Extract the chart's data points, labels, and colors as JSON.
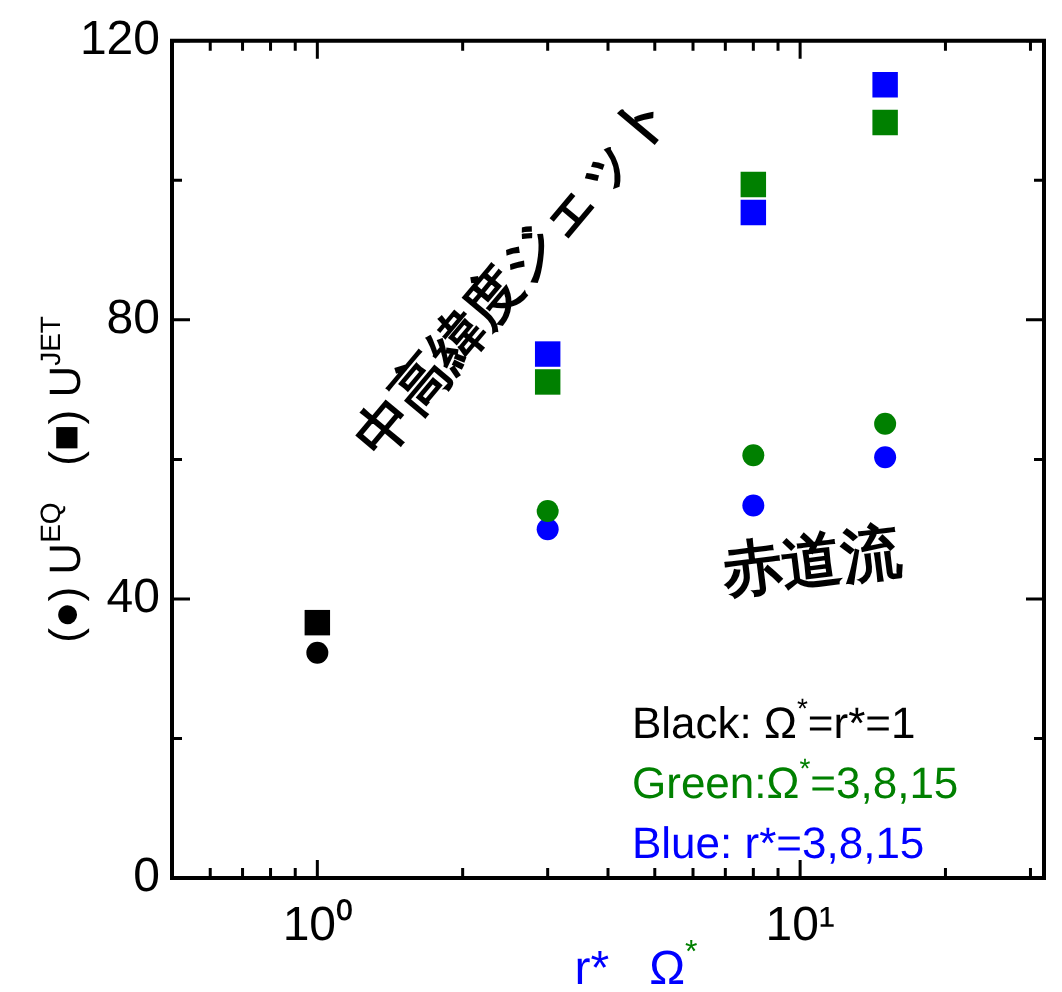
{
  "chart_data": {
    "type": "scatter",
    "ylabel": "(●) U$^{EQ}$   (■) U$^{JET}$",
    "xlabel": "r*   Ω$^{*}$",
    "log": "x",
    "xlim": [
      0.5,
      32
    ],
    "xticks": [
      {
        "value": 0.6,
        "label": null
      },
      {
        "value": 0.7,
        "label": null
      },
      {
        "value": 0.8,
        "label": null
      },
      {
        "value": 0.9,
        "label": null
      },
      {
        "value": 1,
        "label": "10⁰"
      },
      {
        "value": 2,
        "label": null
      },
      {
        "value": 3,
        "label": null
      },
      {
        "value": 4,
        "label": null
      },
      {
        "value": 5,
        "label": null
      },
      {
        "value": 6,
        "label": null
      },
      {
        "value": 7,
        "label": null
      },
      {
        "value": 8,
        "label": null
      },
      {
        "value": 9,
        "label": null
      },
      {
        "value": 10,
        "label": "10¹"
      },
      {
        "value": 20,
        "label": null
      },
      {
        "value": 30,
        "label": null
      }
    ],
    "ylim": [
      0,
      120
    ],
    "yticks": [
      0,
      {
        "value": 20,
        "label": null
      },
      40,
      {
        "value": 60,
        "label": null
      },
      80,
      {
        "value": 100,
        "label": null
      },
      120
    ],
    "grid": false,
    "legend": false,
    "series": [
      {
        "color": "#000000",
        "marker": "square",
        "x": [
          1
        ],
        "values": [
          36.6
        ]
      },
      {
        "color": "#000000",
        "marker": "circle",
        "x": [
          1
        ],
        "values": [
          32.3
        ]
      },
      {
        "color": "#008000",
        "marker": "square",
        "x": [
          3,
          8,
          15
        ],
        "values": [
          71.1,
          99.4,
          108.3
        ]
      },
      {
        "color": "#008000",
        "marker": "circle",
        "x": [
          3,
          8,
          15
        ],
        "values": [
          52.6,
          60.6,
          65.1
        ]
      },
      {
        "color": "#0000ff",
        "marker": "square",
        "x": [
          3,
          8,
          15
        ],
        "values": [
          75.1,
          95.4,
          113.7
        ]
      },
      {
        "color": "#0000ff",
        "marker": "circle",
        "x": [
          3,
          8,
          15
        ],
        "values": [
          50,
          53.4,
          60.3
        ]
      }
    ],
    "annotations": [
      "中高緯度ジェット",
      "赤道流",
      "Black: Ω$^{*}$=r*=1",
      "Green:Ω$^{*}$=3,8,15",
      "Blue: r*=3,8,15"
    ]
  }
}
